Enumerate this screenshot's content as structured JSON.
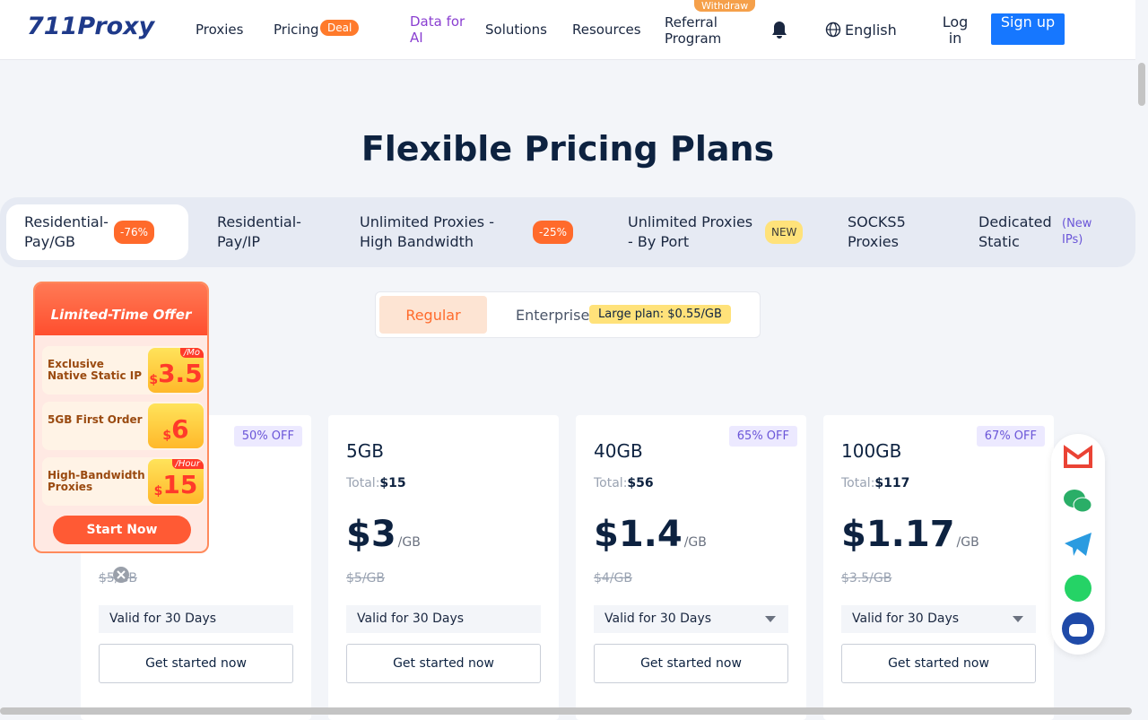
{
  "header": {
    "logo": "711Proxy",
    "nav": {
      "proxies": "Proxies",
      "pricing": "Pricing",
      "deal": "Deal",
      "data_ai": "Data for AI",
      "solutions": "Solutions",
      "resources": "Resources",
      "referral": "Referral Program",
      "withdraw": "Withdraw",
      "language": "English",
      "login": "Log in",
      "signup": "Sign up"
    }
  },
  "title": "Flexible Pricing Plans",
  "tabs": [
    {
      "label": "Residential-Pay/GB",
      "badge": "-76%"
    },
    {
      "label": "Residential-Pay/IP"
    },
    {
      "label": "Unlimited Proxies - High Bandwidth",
      "badge": "-25%"
    },
    {
      "label": "Unlimited Proxies - By Port",
      "badge": "NEW"
    },
    {
      "label": "SOCKS5 Proxies"
    },
    {
      "label": "Dedicated Static",
      "badge": "(New IPs)"
    }
  ],
  "toggle": {
    "regular": "Regular",
    "enterprise": "Enterprise",
    "note": "Large plan: $0.55/GB"
  },
  "promo": {
    "title": "Limited-Time Offer",
    "items": [
      {
        "label": "Exclusive Native Static IP",
        "currency": "$",
        "price": "3.5",
        "unit": "/Mo"
      },
      {
        "label": "5GB First Order",
        "currency": "$",
        "price": "6"
      },
      {
        "label": "High-Bandwidth Proxies",
        "currency": "$",
        "price": "15",
        "unit": "/Hour"
      }
    ],
    "button": "Start Now"
  },
  "plans": [
    {
      "discount": "50% OFF",
      "original": "$5/GB",
      "validity": "Valid for 30 Days",
      "button": "Get started now"
    },
    {
      "name": "5GB",
      "total_label": "Total:",
      "total": "$15",
      "price": "$3",
      "unit": "/GB",
      "original": "$5/GB",
      "validity": "Valid for 30 Days",
      "button": "Get started now"
    },
    {
      "discount": "65% OFF",
      "name": "40GB",
      "total_label": "Total:",
      "total": "$56",
      "price": "$1.4",
      "unit": "/GB",
      "original": "$4/GB",
      "validity": "Valid for 30 Days",
      "button": "Get started now"
    },
    {
      "discount": "67% OFF",
      "name": "100GB",
      "total_label": "Total:",
      "total": "$117",
      "price": "$1.17",
      "unit": "/GB",
      "original": "$3.5/GB",
      "validity": "Valid for 30 Days",
      "button": "Get started now"
    }
  ]
}
